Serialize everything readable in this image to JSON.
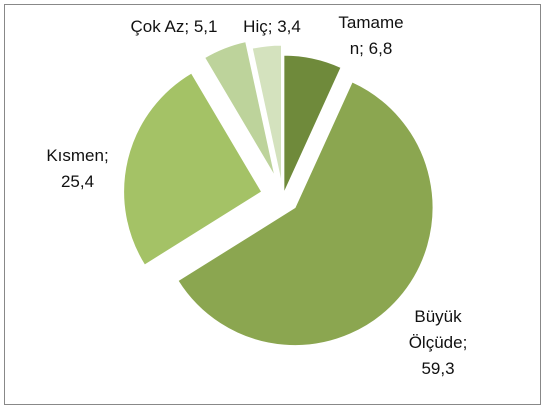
{
  "chart_data": {
    "type": "pie",
    "categories": [
      "Tamamen;",
      "Büyük Ölçüde;",
      "Kısmen;",
      "Çok Az;",
      "Hiç;"
    ],
    "values": [
      6.8,
      59.3,
      25.4,
      5.1,
      3.4
    ],
    "value_labels": [
      "6,8",
      "59,3",
      "25,4",
      "5,1",
      "3,4"
    ],
    "colors": [
      "#6f8a3b",
      "#8ba650",
      "#a4c266",
      "#bdd39b",
      "#d4e2be"
    ]
  }
}
